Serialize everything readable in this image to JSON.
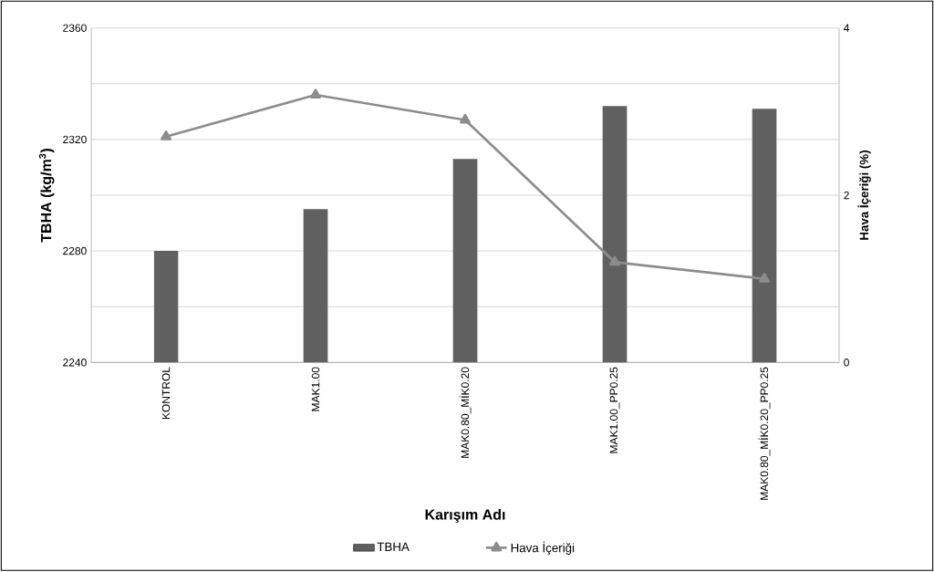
{
  "chart_data": {
    "type": "bar",
    "xlabel": "Karışım Adı",
    "ylabel": "TBHA (kg/m$^{3}$)",
    "y2label": "Hava İçeriği (%)",
    "categories": [
      "KONTROL",
      "MAK1.00",
      "MAK0.80_MİK0.20",
      "MAK1.00_PP0.25",
      "MAK0.80_MİK0.20_PP0.25"
    ],
    "series": [
      {
        "name": "TBHA",
        "color": "#606060",
        "values": [
          2280,
          2295,
          2313,
          2332,
          2331
        ]
      },
      {
        "name": "Hava İçeriği",
        "type": "line",
        "axis": "y2",
        "color": "#8c8c8c",
        "marker": "triangle",
        "values": [
          2.7,
          3.2,
          2.9,
          1.2,
          1.0
        ]
      }
    ],
    "ylim": [
      2240,
      2360
    ],
    "yticks": [
      2240,
      {
        "value": 2260,
        "label": null
      },
      2280,
      {
        "value": 2300,
        "label": null
      },
      2320,
      {
        "value": 2340,
        "label": null
      },
      2360
    ],
    "y2lim": [
      0,
      4
    ],
    "y2ticks": [
      0,
      2,
      4
    ],
    "grid": "y",
    "legend": "bottom"
  }
}
